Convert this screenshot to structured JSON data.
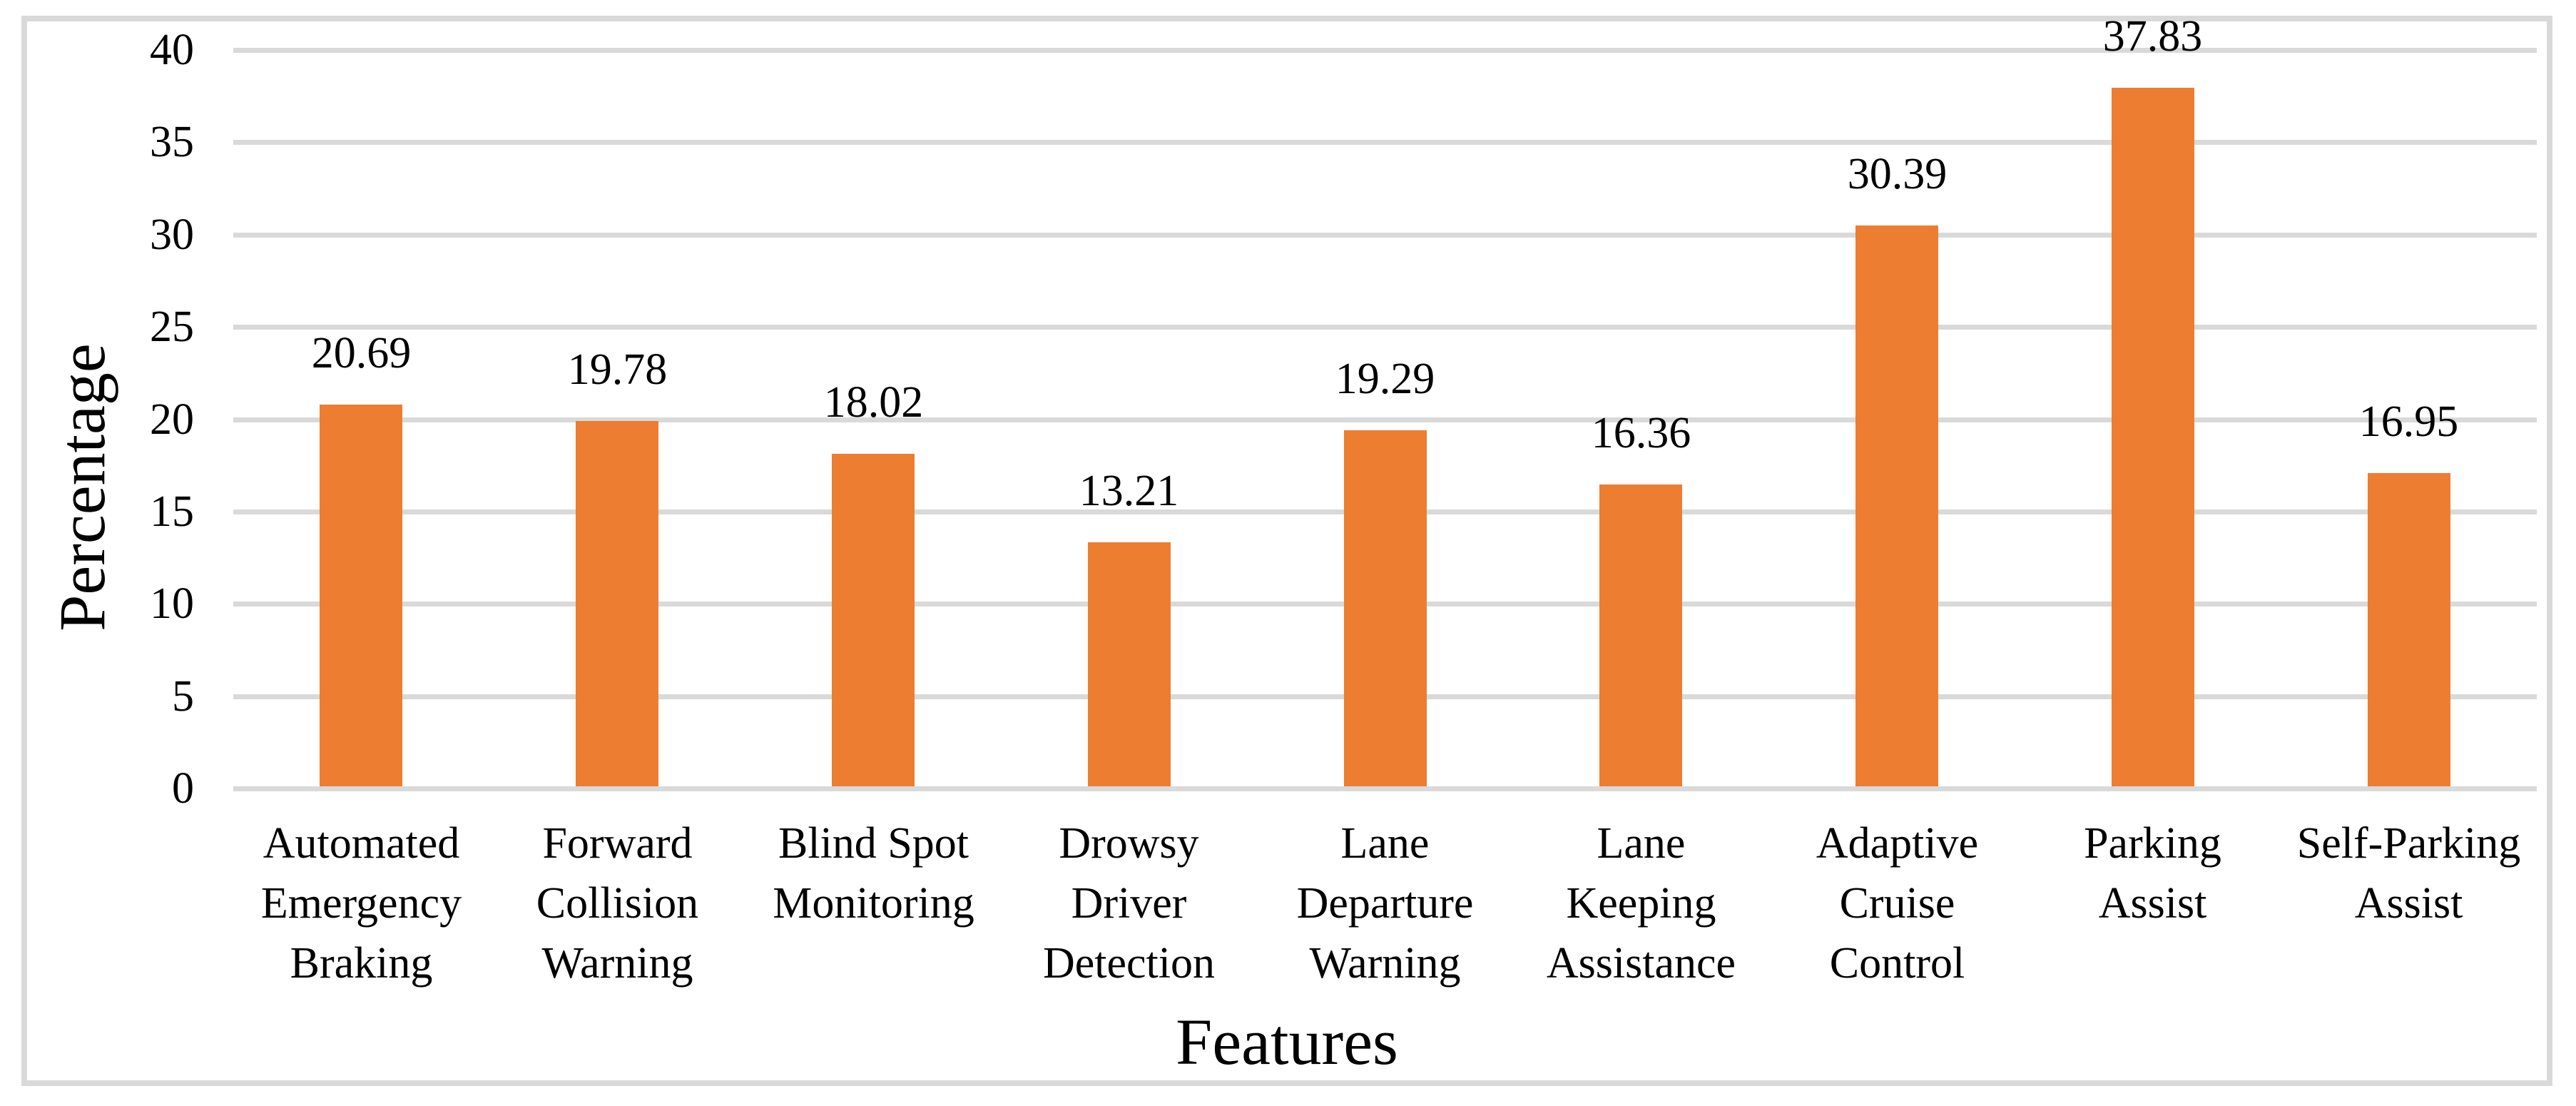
{
  "figure": {
    "background": "#FFFFFF",
    "border_color": "#D9D9D9"
  },
  "chart_data": {
    "type": "bar",
    "title": "",
    "xlabel": "Features",
    "ylabel": "Percentage",
    "categories": [
      "Automated Emergency Braking",
      "Forward Collision Warning",
      "Blind Spot Monitoring",
      "Drowsy Driver Detection",
      "Lane Departure Warning",
      "Lane Keeping Assistance",
      "Adaptive Cruise Control",
      "Parking Assist",
      "Self-Parking Assist"
    ],
    "category_lines": [
      [
        "Automated",
        "Emergency",
        "Braking"
      ],
      [
        "Forward",
        "Collision",
        "Warning"
      ],
      [
        "Blind Spot",
        "Monitoring"
      ],
      [
        "Drowsy",
        "Driver",
        "Detection"
      ],
      [
        "Lane",
        "Departure",
        "Warning"
      ],
      [
        "Lane",
        "Keeping",
        "Assistance"
      ],
      [
        "Adaptive",
        "Cruise",
        "Control"
      ],
      [
        "Parking",
        "Assist"
      ],
      [
        "Self-Parking",
        "Assist"
      ]
    ],
    "values": [
      20.69,
      19.78,
      18.02,
      13.21,
      19.29,
      16.36,
      30.39,
      37.83,
      16.95
    ],
    "value_labels": [
      "20.69",
      "19.78",
      "18.02",
      "13.21",
      "19.29",
      "16.36",
      "30.39",
      "37.83",
      "16.95"
    ],
    "ylim": [
      0,
      40
    ],
    "yticks": [
      0,
      5,
      10,
      15,
      20,
      25,
      30,
      35,
      40
    ],
    "ytick_labels": [
      "0",
      "5",
      "10",
      "15",
      "20",
      "25",
      "30",
      "35",
      "40"
    ],
    "grid": "horizontal",
    "gridline_color": "#D9D9D9",
    "bar_color": "#ED7D31",
    "text_color": "#000000",
    "legend": "none"
  }
}
